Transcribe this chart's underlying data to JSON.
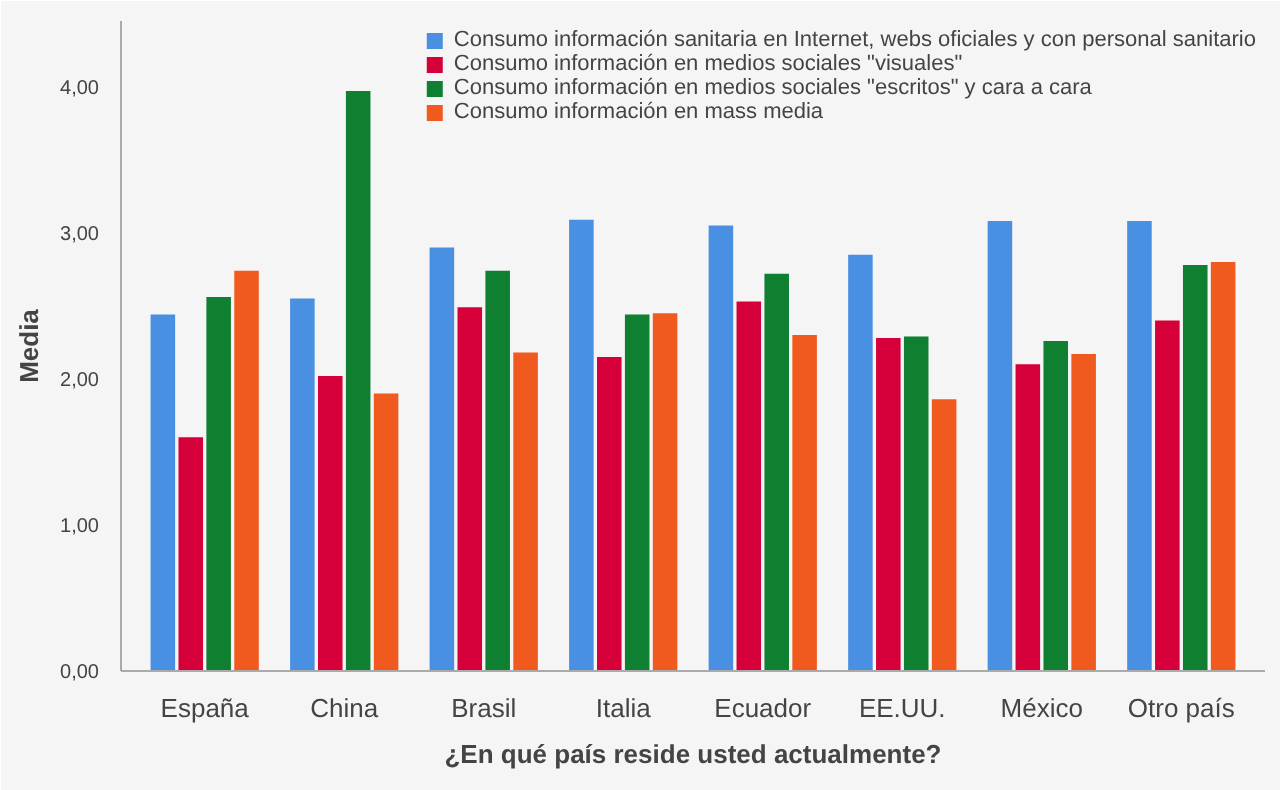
{
  "chart_data": {
    "type": "bar",
    "xlabel": "¿En qué país reside usted actualmente?",
    "ylabel": "Media",
    "categories": [
      "España",
      "China",
      "Brasil",
      "Italia",
      "Ecuador",
      "EE.UU.",
      "México",
      "Otro país"
    ],
    "series": [
      {
        "name": "Consumo información sanitaria en Internet, webs oficiales y con personal sanitario",
        "color": "#4a90e2",
        "values": [
          2.44,
          2.55,
          2.9,
          3.09,
          3.05,
          2.85,
          3.08,
          3.08
        ]
      },
      {
        "name": "Consumo información en medios sociales \"visuales\"",
        "color": "#d5003a",
        "values": [
          1.6,
          2.02,
          2.49,
          2.15,
          2.53,
          2.28,
          2.1,
          2.4
        ]
      },
      {
        "name": "Consumo información en medios sociales \"escritos\" y cara a cara",
        "color": "#0f7f32",
        "values": [
          2.56,
          3.97,
          2.74,
          2.44,
          2.72,
          2.29,
          2.26,
          2.78
        ]
      },
      {
        "name": "Consumo información en mass media",
        "color": "#f05a1e",
        "values": [
          2.74,
          1.9,
          2.18,
          2.45,
          2.3,
          1.86,
          2.17,
          2.8
        ]
      }
    ],
    "ylim": [
      0,
      4.45
    ],
    "yticks": [
      {
        "value": 0,
        "label": "0,00"
      },
      {
        "value": 1,
        "label": "1,00"
      },
      {
        "value": 2,
        "label": "2,00"
      },
      {
        "value": 3,
        "label": "3,00"
      },
      {
        "value": 4,
        "label": "4,00"
      }
    ],
    "grid": false,
    "legend": "top right"
  }
}
